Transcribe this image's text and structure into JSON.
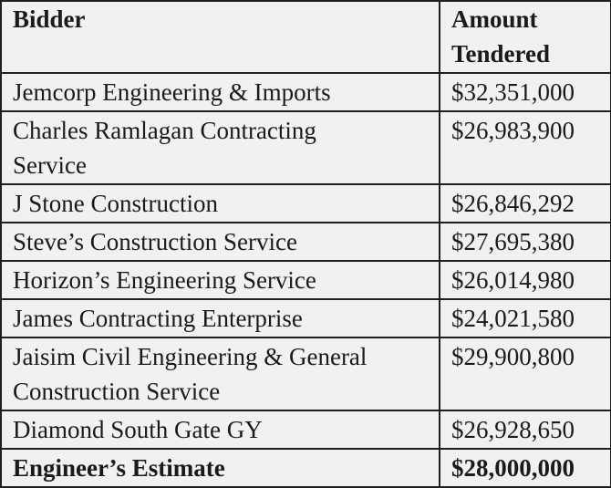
{
  "headers": {
    "bidder": "Bidder",
    "amount_line1": "Amount",
    "amount_line2": "Tendered"
  },
  "rows": [
    {
      "bidder": "Jemcorp Engineering & Imports",
      "amount": "$32,351,000"
    },
    {
      "bidder_line1": "Charles Ramlagan Contracting",
      "bidder_line2": "Service",
      "amount": "$26,983,900"
    },
    {
      "bidder": "J Stone Construction",
      "amount": "$26,846,292"
    },
    {
      "bidder": "Steve’s Construction Service",
      "amount": "$27,695,380"
    },
    {
      "bidder": "Horizon’s Engineering Service",
      "amount": "$26,014,980"
    },
    {
      "bidder": "James Contracting Enterprise",
      "amount": "$24,021,580"
    },
    {
      "bidder_line1": "Jaisim Civil Engineering & General",
      "bidder_line2": "Construction Service",
      "amount": "$29,900,800"
    },
    {
      "bidder": "Diamond South Gate GY",
      "amount": "$26,928,650"
    }
  ],
  "total": {
    "label": "Engineer’s Estimate",
    "amount": "$28,000,000"
  }
}
